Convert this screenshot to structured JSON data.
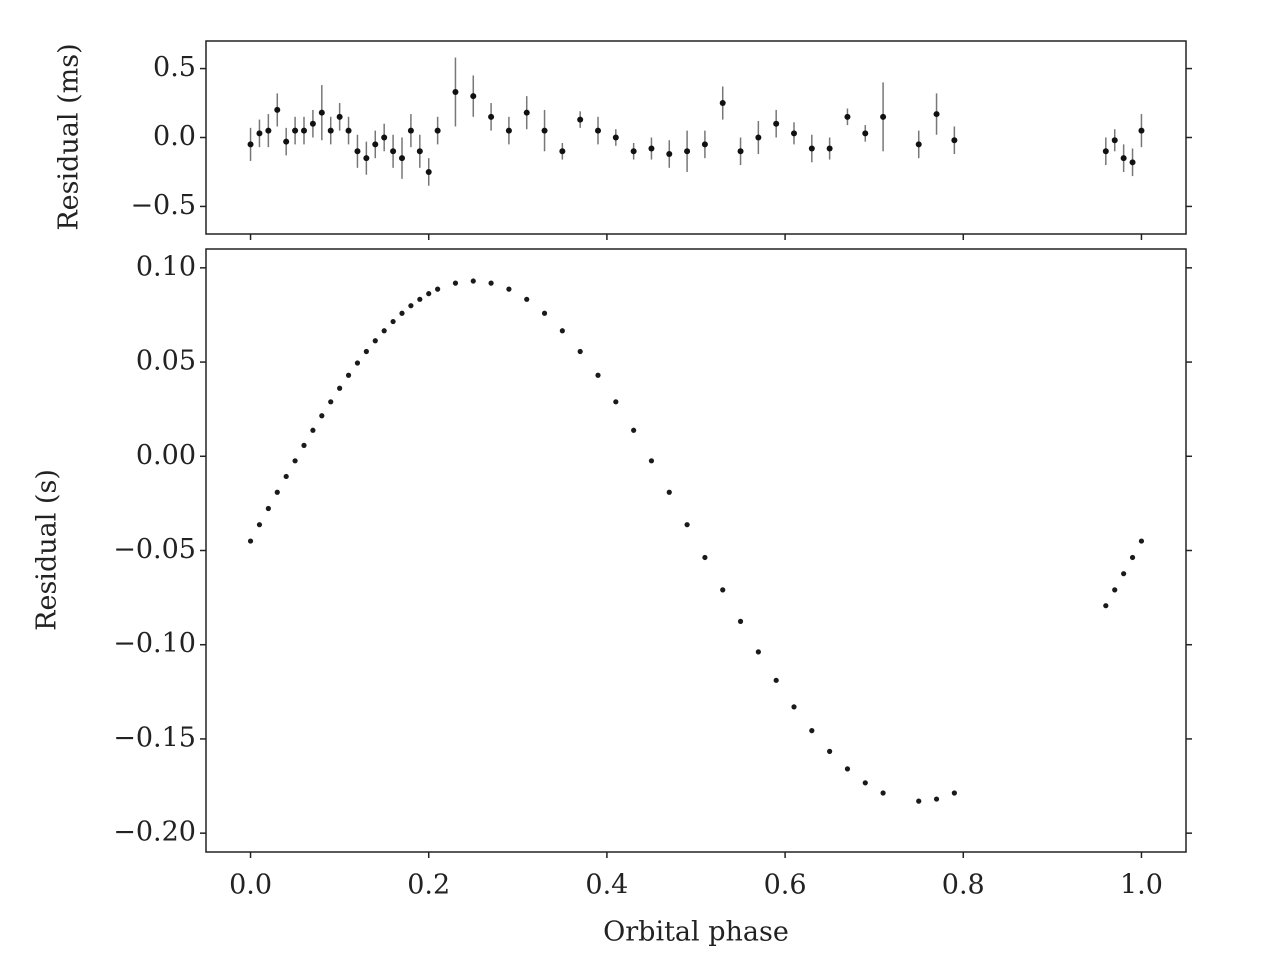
{
  "chart_data": [
    {
      "type": "errorbar",
      "ylabel": "Residual (ms)",
      "color": "#111111",
      "errorcolor": "#777777",
      "x": [
        0.0,
        0.01,
        0.02,
        0.03,
        0.04,
        0.05,
        0.06,
        0.07,
        0.08,
        0.09,
        0.1,
        0.11,
        0.12,
        0.13,
        0.14,
        0.15,
        0.16,
        0.17,
        0.18,
        0.19,
        0.2,
        0.21,
        0.23,
        0.25,
        0.27,
        0.29,
        0.31,
        0.33,
        0.35,
        0.37,
        0.39,
        0.41,
        0.43,
        0.45,
        0.47,
        0.49,
        0.51,
        0.53,
        0.55,
        0.57,
        0.59,
        0.61,
        0.63,
        0.65,
        0.67,
        0.69,
        0.71,
        0.75,
        0.77,
        0.79,
        0.96,
        0.97,
        0.98,
        0.99,
        1.0
      ],
      "values": [
        -0.05,
        0.03,
        0.05,
        0.2,
        -0.03,
        0.05,
        0.05,
        0.1,
        0.18,
        0.05,
        0.15,
        0.05,
        -0.1,
        -0.15,
        -0.05,
        0.0,
        -0.1,
        -0.15,
        0.05,
        -0.1,
        -0.25,
        0.05,
        0.33,
        0.3,
        0.15,
        0.05,
        0.18,
        0.05,
        -0.1,
        0.13,
        0.05,
        0.0,
        -0.1,
        -0.08,
        -0.12,
        -0.1,
        -0.05,
        0.25,
        -0.1,
        0.0,
        0.1,
        0.03,
        -0.08,
        -0.08,
        0.15,
        0.03,
        0.15,
        -0.05,
        0.17,
        -0.02,
        -0.1,
        -0.02,
        -0.15,
        -0.18,
        0.05
      ],
      "errors": [
        0.12,
        0.1,
        0.12,
        0.12,
        0.1,
        0.1,
        0.1,
        0.1,
        0.2,
        0.1,
        0.1,
        0.1,
        0.12,
        0.12,
        0.1,
        0.1,
        0.12,
        0.15,
        0.12,
        0.12,
        0.1,
        0.1,
        0.25,
        0.15,
        0.1,
        0.1,
        0.12,
        0.15,
        0.06,
        0.06,
        0.1,
        0.06,
        0.06,
        0.08,
        0.1,
        0.15,
        0.1,
        0.12,
        0.1,
        0.12,
        0.1,
        0.08,
        0.1,
        0.08,
        0.06,
        0.06,
        0.25,
        0.1,
        0.15,
        0.1,
        0.1,
        0.08,
        0.1,
        0.1,
        0.12
      ],
      "xlim": [
        -0.05,
        1.05
      ],
      "ylim": [
        -0.7,
        0.7
      ],
      "yticks": [
        {
          "value": -0.5,
          "label": "−0.5"
        },
        {
          "value": 0,
          "label": "0.0"
        },
        0.5
      ]
    },
    {
      "type": "scatter",
      "xlabel": "Orbital phase",
      "ylabel": "Residual (s)",
      "color": "#1a1a1a",
      "x": [
        0.0,
        0.01,
        0.02,
        0.03,
        0.04,
        0.05,
        0.06,
        0.07,
        0.08,
        0.09,
        0.1,
        0.11,
        0.12,
        0.13,
        0.14,
        0.15,
        0.16,
        0.17,
        0.18,
        0.19,
        0.2,
        0.21,
        0.23,
        0.25,
        0.27,
        0.29,
        0.31,
        0.33,
        0.35,
        0.37,
        0.39,
        0.41,
        0.43,
        0.45,
        0.47,
        0.49,
        0.51,
        0.53,
        0.55,
        0.57,
        0.59,
        0.61,
        0.63,
        0.65,
        0.67,
        0.69,
        0.71,
        0.75,
        0.77,
        0.79,
        0.96,
        0.97,
        0.98,
        0.99,
        1.0
      ],
      "values": [
        -0.045,
        -0.0363,
        -0.0277,
        -0.0191,
        -0.0107,
        -0.0024,
        0.0058,
        0.0138,
        0.0215,
        0.0289,
        0.0361,
        0.043,
        0.0495,
        0.0556,
        0.0613,
        0.0666,
        0.0715,
        0.0759,
        0.0799,
        0.0833,
        0.0863,
        0.0887,
        0.0919,
        0.093,
        0.0919,
        0.0887,
        0.0833,
        0.0759,
        0.0666,
        0.0556,
        0.043,
        0.0289,
        0.0138,
        -0.0024,
        -0.0191,
        -0.0363,
        -0.0537,
        -0.0709,
        -0.0876,
        -0.1038,
        -0.1189,
        -0.133,
        -0.1456,
        -0.1566,
        -0.1659,
        -0.1733,
        -0.1787,
        -0.183,
        -0.1819,
        -0.1787,
        -0.0793,
        -0.0709,
        -0.0623,
        -0.0537,
        -0.045
      ],
      "xlim": [
        -0.05,
        1.05
      ],
      "ylim": [
        -0.21,
        0.11
      ],
      "xticks": [
        {
          "value": 0,
          "label": "0.0"
        },
        0.2,
        0.4,
        0.6,
        0.8,
        {
          "value": 1,
          "label": "1.0"
        }
      ],
      "yticks": [
        {
          "value": -0.2,
          "label": "−0.20"
        },
        {
          "value": -0.15,
          "label": "−0.15"
        },
        {
          "value": -0.1,
          "label": "−0.10"
        },
        {
          "value": -0.05,
          "label": "−0.05"
        },
        {
          "value": 0,
          "label": "0.00"
        },
        0.05,
        {
          "value": 0.1,
          "label": "0.10"
        }
      ]
    }
  ]
}
